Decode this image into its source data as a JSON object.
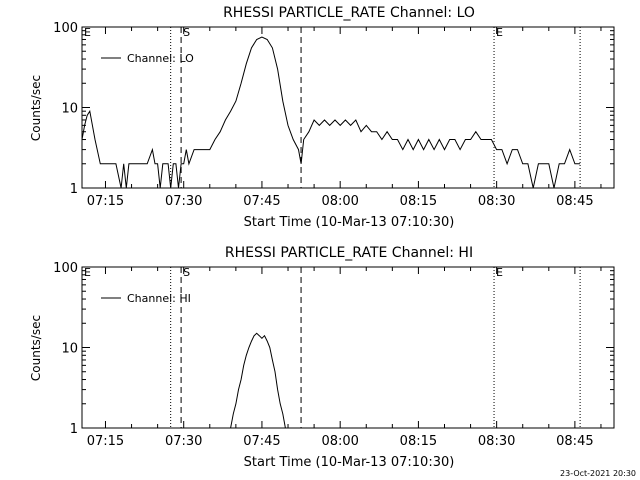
{
  "chart_data": [
    {
      "type": "line",
      "title": "RHESSI PARTICLE_RATE Channel: LO",
      "xlabel": "Start Time (10-Mar-13 07:10:30)",
      "ylabel": "Counts/sec",
      "yscale": "log",
      "xlim": [
        "07:10:30",
        "08:52:30"
      ],
      "ylim": [
        1,
        100
      ],
      "x_ticks": [
        "07:15",
        "07:30",
        "07:45",
        "08:00",
        "08:15",
        "08:30",
        "08:45"
      ],
      "y_ticks": [
        "1",
        "10",
        "100"
      ],
      "legend": {
        "position": "top-left",
        "label": "Channel: LO"
      },
      "markers": [
        {
          "label": "E",
          "time": "07:10:30",
          "style": "none"
        },
        {
          "label": "",
          "time": "07:27:30",
          "style": "dotted"
        },
        {
          "label": "S",
          "time": "07:29:30",
          "style": "dashed"
        },
        {
          "label": "",
          "time": "07:52:30",
          "style": "dashed"
        },
        {
          "label": "E",
          "time": "08:29:30",
          "style": "dotted"
        },
        {
          "label": "",
          "time": "08:46:00",
          "style": "dotted"
        }
      ],
      "series": [
        {
          "name": "Channel: LO",
          "x": [
            "07:10:30",
            "07:11:00",
            "07:11:30",
            "07:12:00",
            "07:13:00",
            "07:14:00",
            "07:16:00",
            "07:17:00",
            "07:18:00",
            "07:18:30",
            "07:19:00",
            "07:19:30",
            "07:20:00",
            "07:21:00",
            "07:21:30",
            "07:22:00",
            "07:23:00",
            "07:24:00",
            "07:24:30",
            "07:25:00",
            "07:25:30",
            "07:26:00",
            "07:26:30",
            "07:27:00",
            "07:27:30",
            "07:28:00",
            "07:28:30",
            "07:29:00",
            "07:29:30",
            "07:30:00",
            "07:30:30",
            "07:31:00",
            "07:32:00",
            "07:33:00",
            "07:34:00",
            "07:35:00",
            "07:36:00",
            "07:37:00",
            "07:38:00",
            "07:39:00",
            "07:40:00",
            "07:41:00",
            "07:42:00",
            "07:43:00",
            "07:44:00",
            "07:45:00",
            "07:46:00",
            "07:47:00",
            "07:48:00",
            "07:49:00",
            "07:50:00",
            "07:51:00",
            "07:52:00",
            "07:52:30",
            "07:53:00",
            "07:54:00",
            "07:55:00",
            "07:56:00",
            "07:57:00",
            "07:58:00",
            "07:59:00",
            "08:00:00",
            "08:01:00",
            "08:02:00",
            "08:03:00",
            "08:04:00",
            "08:05:00",
            "08:06:00",
            "08:07:00",
            "08:08:00",
            "08:09:00",
            "08:10:00",
            "08:11:00",
            "08:12:00",
            "08:13:00",
            "08:14:00",
            "08:15:00",
            "08:16:00",
            "08:17:00",
            "08:18:00",
            "08:19:00",
            "08:20:00",
            "08:21:00",
            "08:22:00",
            "08:23:00",
            "08:24:00",
            "08:25:00",
            "08:26:00",
            "08:27:00",
            "08:28:00",
            "08:29:00",
            "08:30:00",
            "08:31:00",
            "08:32:00",
            "08:33:00",
            "08:34:00",
            "08:35:00",
            "08:36:00",
            "08:37:00",
            "08:38:00",
            "08:39:00",
            "08:40:00",
            "08:41:00",
            "08:42:00",
            "08:43:00",
            "08:44:00",
            "08:45:00",
            "08:46:00"
          ],
          "y": [
            4,
            6,
            8,
            9,
            4,
            2,
            2,
            2,
            1,
            2,
            1,
            2,
            2,
            2,
            2,
            2,
            2,
            3,
            2,
            2,
            1,
            2,
            2,
            2,
            1,
            2,
            2,
            1,
            2,
            2,
            3,
            2,
            3,
            3,
            3,
            3,
            4,
            5,
            7,
            9,
            12,
            20,
            35,
            55,
            70,
            75,
            70,
            55,
            30,
            12,
            6,
            4,
            3,
            2,
            4,
            5,
            7,
            6,
            7,
            6,
            7,
            6,
            7,
            6,
            7,
            5,
            6,
            5,
            5,
            4,
            5,
            4,
            4,
            3,
            4,
            3,
            4,
            3,
            4,
            3,
            4,
            3,
            4,
            4,
            3,
            4,
            4,
            5,
            4,
            4,
            4,
            3,
            3,
            2,
            3,
            3,
            2,
            2,
            1,
            2,
            2,
            2,
            1,
            2,
            2,
            3,
            2,
            2
          ],
          "color": "#000000"
        }
      ]
    },
    {
      "type": "line",
      "title": "RHESSI PARTICLE_RATE Channel: HI",
      "xlabel": "Start Time (10-Mar-13 07:10:30)",
      "ylabel": "Counts/sec",
      "yscale": "log",
      "xlim": [
        "07:10:30",
        "08:52:30"
      ],
      "ylim": [
        1,
        100
      ],
      "x_ticks": [
        "07:15",
        "07:30",
        "07:45",
        "08:00",
        "08:15",
        "08:30",
        "08:45"
      ],
      "y_ticks": [
        "1",
        "10",
        "100"
      ],
      "legend": {
        "position": "top-left",
        "label": "Channel: HI"
      },
      "markers": [
        {
          "label": "E",
          "time": "07:10:30",
          "style": "none"
        },
        {
          "label": "",
          "time": "07:27:30",
          "style": "dotted"
        },
        {
          "label": "S",
          "time": "07:29:30",
          "style": "dashed"
        },
        {
          "label": "",
          "time": "07:52:30",
          "style": "dashed"
        },
        {
          "label": "E",
          "time": "08:29:30",
          "style": "dotted"
        },
        {
          "label": "",
          "time": "08:46:00",
          "style": "dotted"
        }
      ],
      "series": [
        {
          "name": "Channel: HI",
          "x": [
            "07:39:00",
            "07:39:30",
            "07:40:00",
            "07:40:30",
            "07:41:00",
            "07:41:30",
            "07:42:00",
            "07:42:30",
            "07:43:00",
            "07:43:30",
            "07:44:00",
            "07:44:30",
            "07:45:00",
            "07:45:30",
            "07:46:00",
            "07:46:30",
            "07:47:00",
            "07:47:30",
            "07:48:00",
            "07:48:30",
            "07:49:00",
            "07:49:30"
          ],
          "y": [
            1,
            1.5,
            2,
            3,
            4,
            6,
            8,
            10,
            12,
            14,
            15,
            14,
            13,
            14,
            12,
            10,
            7,
            5,
            3,
            2,
            1.5,
            1
          ],
          "color": "#000000"
        }
      ]
    }
  ],
  "footer": {
    "timestamp": "23-Oct-2021 20:30"
  }
}
